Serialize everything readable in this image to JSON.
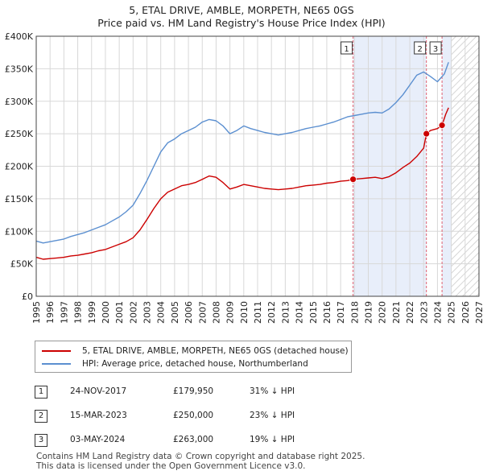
{
  "title_line1": "5, ETAL DRIVE, AMBLE, MORPETH, NE65 0GS",
  "title_line2": "Price paid vs. HM Land Registry's House Price Index (HPI)",
  "legend": {
    "property": "5, ETAL DRIVE, AMBLE, MORPETH, NE65 0GS (detached house)",
    "hpi": "HPI: Average price, detached house, Northumberland"
  },
  "colors": {
    "property": "#cc0000",
    "hpi": "#5b8fd0",
    "shade": "#e8eefa",
    "grid": "#d8d8d8",
    "marker_line": "#e06070"
  },
  "transactions": [
    {
      "num": "1",
      "date": "24-NOV-2017",
      "price": "£179,950",
      "pct": "31% ↓ HPI"
    },
    {
      "num": "2",
      "date": "15-MAR-2023",
      "price": "£250,000",
      "pct": "23% ↓ HPI"
    },
    {
      "num": "3",
      "date": "03-MAY-2024",
      "price": "£263,000",
      "pct": "19% ↓ HPI"
    }
  ],
  "footer_line1": "Contains HM Land Registry data © Crown copyright and database right 2025.",
  "footer_line2": "This data is licensed under the Open Government Licence v3.0.",
  "chart_data": {
    "type": "line",
    "title": "5, ETAL DRIVE, AMBLE, MORPETH, NE65 0GS — Price paid vs. HM Land Registry's House Price Index (HPI)",
    "xlim": [
      1995,
      2027
    ],
    "ylim": [
      0,
      400000
    ],
    "x_ticks": [
      "1995",
      "1996",
      "1997",
      "1998",
      "1999",
      "2000",
      "2001",
      "2002",
      "2003",
      "2004",
      "2005",
      "2006",
      "2007",
      "2008",
      "2009",
      "2010",
      "2011",
      "2012",
      "2013",
      "2014",
      "2015",
      "2016",
      "2017",
      "2018",
      "2019",
      "2020",
      "2021",
      "2022",
      "2023",
      "2024",
      "2025",
      "2026",
      "2027"
    ],
    "y_ticks": [
      {
        "value": 0,
        "label": "£0"
      },
      {
        "value": 50000,
        "label": "£50K"
      },
      {
        "value": 100000,
        "label": "£100K"
      },
      {
        "value": 150000,
        "label": "£150K"
      },
      {
        "value": 200000,
        "label": "£200K"
      },
      {
        "value": 250000,
        "label": "£250K"
      },
      {
        "value": 300000,
        "label": "£300K"
      },
      {
        "value": 350000,
        "label": "£350K"
      },
      {
        "value": 400000,
        "label": "£400K"
      }
    ],
    "shaded_ranges": [
      [
        2017.9,
        2023.2
      ],
      [
        2024.33,
        2025.0
      ]
    ],
    "hatched_from": 2025.0,
    "series": [
      {
        "name": "HPI: Average price, detached house, Northumberland",
        "x": [
          1995.0,
          1995.5,
          1996.0,
          1996.5,
          1997.0,
          1997.5,
          1998.0,
          1998.5,
          1999.0,
          1999.5,
          2000.0,
          2000.5,
          2001.0,
          2001.5,
          2002.0,
          2002.5,
          2003.0,
          2003.5,
          2004.0,
          2004.5,
          2005.0,
          2005.5,
          2006.0,
          2006.5,
          2007.0,
          2007.5,
          2008.0,
          2008.5,
          2009.0,
          2009.5,
          2010.0,
          2010.5,
          2011.0,
          2011.5,
          2012.0,
          2012.5,
          2013.0,
          2013.5,
          2014.0,
          2014.5,
          2015.0,
          2015.5,
          2016.0,
          2016.5,
          2017.0,
          2017.5,
          2018.0,
          2018.5,
          2019.0,
          2019.5,
          2020.0,
          2020.5,
          2021.0,
          2021.5,
          2022.0,
          2022.5,
          2023.0,
          2023.5,
          2024.0,
          2024.5,
          2024.8
        ],
        "values": [
          85000,
          82000,
          84000,
          86000,
          88000,
          92000,
          95000,
          98000,
          102000,
          106000,
          110000,
          116000,
          122000,
          130000,
          140000,
          158000,
          178000,
          200000,
          222000,
          236000,
          242000,
          250000,
          255000,
          260000,
          268000,
          272000,
          270000,
          262000,
          250000,
          255000,
          262000,
          258000,
          255000,
          252000,
          250000,
          248000,
          250000,
          252000,
          255000,
          258000,
          260000,
          262000,
          265000,
          268000,
          272000,
          276000,
          278000,
          280000,
          282000,
          283000,
          282000,
          288000,
          298000,
          310000,
          325000,
          340000,
          345000,
          338000,
          330000,
          342000,
          360000
        ]
      },
      {
        "name": "5, ETAL DRIVE, AMBLE, MORPETH, NE65 0GS (detached house)",
        "x": [
          1995.0,
          1995.5,
          1996.0,
          1996.5,
          1997.0,
          1997.5,
          1998.0,
          1998.5,
          1999.0,
          1999.5,
          2000.0,
          2000.5,
          2001.0,
          2001.5,
          2002.0,
          2002.5,
          2003.0,
          2003.5,
          2004.0,
          2004.5,
          2005.0,
          2005.5,
          2006.0,
          2006.5,
          2007.0,
          2007.5,
          2008.0,
          2008.5,
          2009.0,
          2009.5,
          2010.0,
          2010.5,
          2011.0,
          2011.5,
          2012.0,
          2012.5,
          2013.0,
          2013.5,
          2014.0,
          2014.5,
          2015.0,
          2015.5,
          2016.0,
          2016.5,
          2017.0,
          2017.5,
          2017.9,
          2018.5,
          2019.0,
          2019.5,
          2020.0,
          2020.5,
          2021.0,
          2021.5,
          2022.0,
          2022.5,
          2023.0,
          2023.2,
          2023.5,
          2024.0,
          2024.33,
          2024.6,
          2024.8
        ],
        "values": [
          60000,
          57000,
          58000,
          59000,
          60000,
          62000,
          63000,
          65000,
          67000,
          70000,
          72000,
          76000,
          80000,
          84000,
          90000,
          102000,
          118000,
          135000,
          150000,
          160000,
          165000,
          170000,
          172000,
          175000,
          180000,
          185000,
          183000,
          175000,
          165000,
          168000,
          172000,
          170000,
          168000,
          166000,
          165000,
          164000,
          165000,
          166000,
          168000,
          170000,
          171000,
          172000,
          174000,
          175000,
          177000,
          178000,
          179950,
          181000,
          182000,
          183000,
          181000,
          184000,
          190000,
          198000,
          205000,
          215000,
          228000,
          250000,
          255000,
          258000,
          263000,
          280000,
          290000
        ]
      }
    ],
    "sales": [
      {
        "num": "1",
        "x": 2017.9,
        "value": 179950
      },
      {
        "num": "2",
        "x": 2023.2,
        "value": 250000
      },
      {
        "num": "3",
        "x": 2024.33,
        "value": 263000
      }
    ]
  }
}
